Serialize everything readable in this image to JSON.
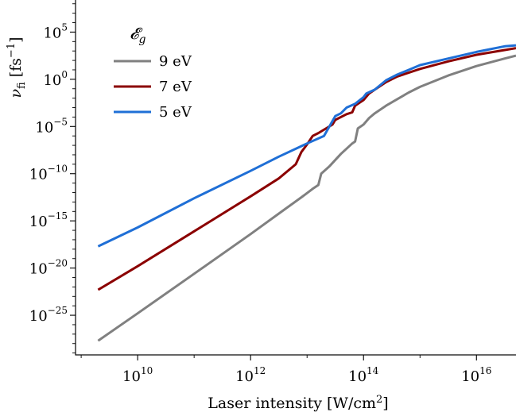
{
  "chart_data": {
    "type": "line",
    "title": "",
    "xlabel": "Laser intensity [W/cm2]",
    "ylabel": "ν_fi [fs−1]",
    "xscale": "log",
    "yscale": "log",
    "xlim_exp": [
      8.9,
      16.7
    ],
    "ylim_exp": [
      -29.2,
      8.4
    ],
    "x_ticks": [
      {
        "base": "10",
        "exp": "10"
      },
      {
        "base": "10",
        "exp": "12"
      },
      {
        "base": "10",
        "exp": "14"
      },
      {
        "base": "10",
        "exp": "16"
      }
    ],
    "y_ticks": [
      {
        "base": "10",
        "exp": "5"
      },
      {
        "base": "10",
        "exp": "0"
      },
      {
        "base": "10",
        "exp": "−5"
      },
      {
        "base": "10",
        "exp": "−10"
      },
      {
        "base": "10",
        "exp": "−15"
      },
      {
        "base": "10",
        "exp": "−20"
      },
      {
        "base": "10",
        "exp": "−25"
      }
    ],
    "legend": {
      "title": "𝓔g",
      "placement": "top-left"
    },
    "grid": false,
    "series": [
      {
        "name": "9 eV",
        "color": "#808080",
        "points": [
          [
            9.3,
            -27.7
          ],
          [
            10.0,
            -24.8
          ],
          [
            11.0,
            -20.6
          ],
          [
            12.0,
            -16.4
          ],
          [
            12.6,
            -13.8
          ],
          [
            12.9,
            -12.5
          ],
          [
            13.1,
            -11.6
          ],
          [
            13.2,
            -11.2
          ],
          [
            13.25,
            -10.0
          ],
          [
            13.4,
            -9.2
          ],
          [
            13.6,
            -7.9
          ],
          [
            13.8,
            -6.8
          ],
          [
            13.85,
            -6.6
          ],
          [
            13.9,
            -5.2
          ],
          [
            14.0,
            -4.8
          ],
          [
            14.1,
            -4.1
          ],
          [
            14.2,
            -3.6
          ],
          [
            14.4,
            -2.8
          ],
          [
            14.6,
            -2.1
          ],
          [
            14.8,
            -1.4
          ],
          [
            15.0,
            -0.8
          ],
          [
            15.5,
            0.4
          ],
          [
            16.0,
            1.4
          ],
          [
            16.5,
            2.2
          ],
          [
            16.7,
            2.5
          ]
        ]
      },
      {
        "name": "7 eV",
        "color": "#8b0000",
        "points": [
          [
            9.3,
            -22.3
          ],
          [
            10.0,
            -19.8
          ],
          [
            11.0,
            -16.1
          ],
          [
            12.0,
            -12.4
          ],
          [
            12.5,
            -10.5
          ],
          [
            12.8,
            -9.0
          ],
          [
            12.9,
            -7.7
          ],
          [
            13.0,
            -6.9
          ],
          [
            13.1,
            -6.0
          ],
          [
            13.2,
            -5.7
          ],
          [
            13.45,
            -4.8
          ],
          [
            13.5,
            -4.3
          ],
          [
            13.7,
            -3.7
          ],
          [
            13.8,
            -3.5
          ],
          [
            13.85,
            -2.8
          ],
          [
            14.0,
            -2.2
          ],
          [
            14.1,
            -1.5
          ],
          [
            14.2,
            -1.1
          ],
          [
            14.4,
            -0.3
          ],
          [
            14.6,
            0.3
          ],
          [
            15.0,
            1.1
          ],
          [
            15.5,
            1.9
          ],
          [
            16.0,
            2.6
          ],
          [
            16.5,
            3.1
          ],
          [
            16.7,
            3.3
          ]
        ]
      },
      {
        "name": "5 eV",
        "color": "#1f6fd6",
        "points": [
          [
            9.3,
            -17.7
          ],
          [
            10.0,
            -15.7
          ],
          [
            11.0,
            -12.6
          ],
          [
            12.0,
            -9.7
          ],
          [
            12.5,
            -8.2
          ],
          [
            13.0,
            -6.8
          ],
          [
            13.3,
            -6.0
          ],
          [
            13.5,
            -3.9
          ],
          [
            13.6,
            -3.6
          ],
          [
            13.7,
            -3.0
          ],
          [
            13.85,
            -2.6
          ],
          [
            14.0,
            -1.9
          ],
          [
            14.05,
            -1.5
          ],
          [
            14.2,
            -1.1
          ],
          [
            14.4,
            -0.1
          ],
          [
            14.6,
            0.5
          ],
          [
            14.8,
            1.0
          ],
          [
            15.0,
            1.5
          ],
          [
            15.5,
            2.2
          ],
          [
            16.0,
            2.9
          ],
          [
            16.5,
            3.5
          ],
          [
            16.7,
            3.6
          ]
        ]
      }
    ]
  }
}
